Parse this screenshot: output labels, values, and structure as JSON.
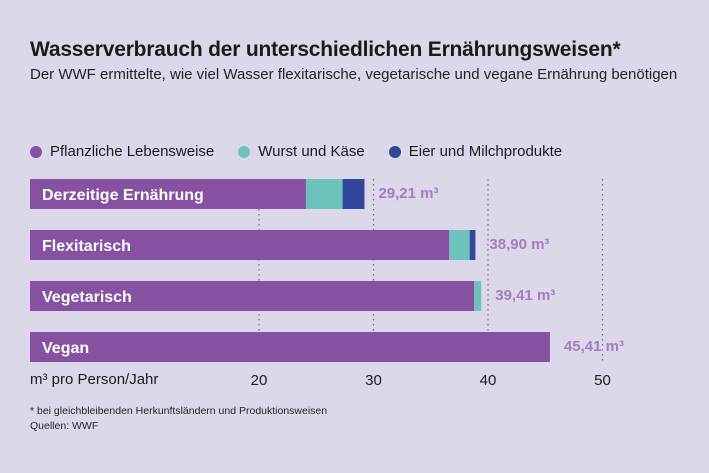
{
  "header": {
    "title": "Wasserverbrauch der unterschiedlichen Ernährungsweisen*",
    "subtitle": "Der WWF ermittelte, wie viel Wasser flexitarische, vegetarische und vegane Ernährung benötigen"
  },
  "footer": {
    "note": "* bei gleichbleibenden Herkunftsländern und Produktionsweisen",
    "source": "Quellen: WWF"
  },
  "chart_data": {
    "type": "bar",
    "orientation": "horizontal",
    "stacked": true,
    "title": "Wasserverbrauch der unterschiedlichen Ernährungsweisen*",
    "xlabel": "m³ pro Person/Jahr",
    "xlim": [
      0,
      50
    ],
    "xticks": [
      20,
      30,
      40,
      50
    ],
    "grid": "vertical dotted",
    "legend_position": "top",
    "categories": [
      "Derzeitige Ernährung",
      "Flexitarisch",
      "Vegetarisch",
      "Vegan"
    ],
    "series": [
      {
        "name": "Pflanzliche Lebensweise",
        "color": "#8651a1",
        "values": [
          24.1,
          36.6,
          38.8,
          45.41
        ]
      },
      {
        "name": "Wurst und Käse",
        "color": "#6dc2bb",
        "values": [
          3.2,
          1.8,
          0.61,
          0
        ]
      },
      {
        "name": "Eier und Milchprodukte",
        "color": "#33479a",
        "values": [
          1.91,
          0.5,
          0,
          0
        ]
      }
    ],
    "value_labels": [
      "29,21 m³",
      "38,90 m³",
      "39,41 m³",
      "45,41 m³"
    ],
    "totals": [
      29.21,
      38.9,
      39.41,
      45.41
    ]
  }
}
